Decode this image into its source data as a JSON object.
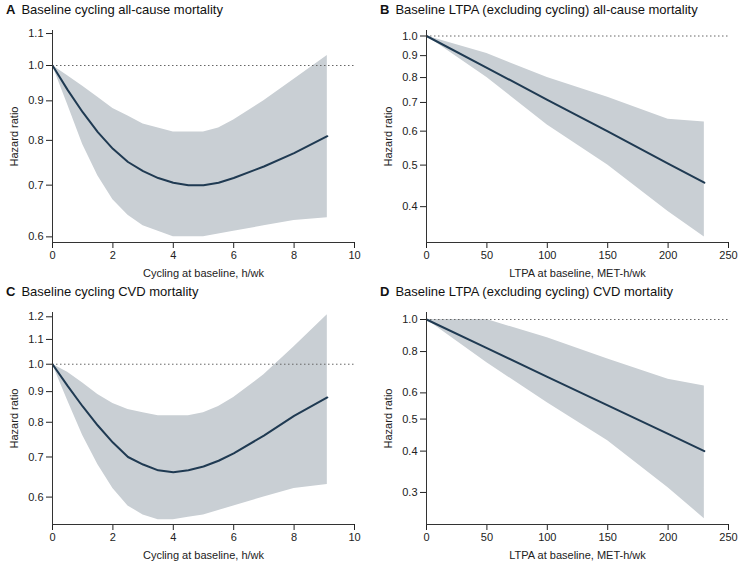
{
  "chart_data": [
    {
      "type": "line",
      "panel_label": "A",
      "title": "Baseline cycling all-cause mortality",
      "x_label": "Cycling at baseline, h/wk",
      "y_label": "Hazard ratio",
      "x": [
        0,
        0.5,
        1,
        1.5,
        2,
        2.5,
        3,
        3.5,
        4,
        4.5,
        5,
        5.5,
        6,
        7,
        8,
        9.1
      ],
      "values": [
        1.0,
        0.93,
        0.87,
        0.82,
        0.78,
        0.75,
        0.73,
        0.715,
        0.705,
        0.7,
        0.7,
        0.705,
        0.715,
        0.74,
        0.77,
        0.81
      ],
      "lower": [
        1.0,
        0.89,
        0.79,
        0.72,
        0.67,
        0.64,
        0.62,
        0.61,
        0.6,
        0.6,
        0.6,
        0.605,
        0.61,
        0.62,
        0.63,
        0.635
      ],
      "upper": [
        1.0,
        0.97,
        0.94,
        0.91,
        0.88,
        0.86,
        0.84,
        0.83,
        0.82,
        0.82,
        0.82,
        0.83,
        0.85,
        0.9,
        0.96,
        1.03
      ],
      "color": "#1f3a52",
      "log": "y",
      "reference_line": 1,
      "xlim": [
        0,
        10
      ],
      "xticks": [
        0,
        2,
        4,
        6,
        8,
        10
      ],
      "ylim": [
        0.59,
        1.11
      ],
      "yticks": [
        0.6,
        0.7,
        0.8,
        0.9,
        {
          "value": 1,
          "label": "1.0"
        },
        1.1
      ]
    },
    {
      "type": "line",
      "panel_label": "B",
      "title": "Baseline LTPA (excluding cycling) all-cause mortality",
      "x_label": "LTPA at baseline, MET-h/wk",
      "y_label": "Hazard ratio",
      "x": [
        0,
        50,
        100,
        150,
        200,
        230
      ],
      "values": [
        1.0,
        0.843,
        0.71,
        0.599,
        0.504,
        0.455
      ],
      "lower": [
        1.0,
        0.8,
        0.62,
        0.5,
        0.39,
        0.34
      ],
      "upper": [
        1.0,
        0.91,
        0.8,
        0.72,
        0.64,
        0.63
      ],
      "color": "#1f3a52",
      "log": "y",
      "reference_line": 1,
      "xlim": [
        0,
        250
      ],
      "xticks": [
        0,
        50,
        100,
        150,
        200,
        250
      ],
      "ylim": [
        0.33,
        1.03
      ],
      "yticks": [
        0.4,
        0.5,
        0.6,
        0.7,
        0.8,
        0.9,
        {
          "value": 1,
          "label": "1.0"
        }
      ]
    },
    {
      "type": "line",
      "panel_label": "C",
      "title": "Baseline cycling CVD mortality",
      "x_label": "Cycling at baseline, h/wk",
      "y_label": "Hazard ratio",
      "x": [
        0,
        0.5,
        1,
        1.5,
        2,
        2.5,
        3,
        3.5,
        4,
        4.5,
        5,
        5.5,
        6,
        7,
        8,
        9.1
      ],
      "values": [
        1.0,
        0.92,
        0.85,
        0.79,
        0.74,
        0.7,
        0.68,
        0.665,
        0.66,
        0.665,
        0.675,
        0.69,
        0.71,
        0.76,
        0.82,
        0.88
      ],
      "lower": [
        1.0,
        0.87,
        0.76,
        0.68,
        0.62,
        0.58,
        0.56,
        0.55,
        0.55,
        0.555,
        0.56,
        0.57,
        0.58,
        0.6,
        0.62,
        0.63
      ],
      "upper": [
        1.0,
        0.97,
        0.93,
        0.89,
        0.86,
        0.84,
        0.83,
        0.82,
        0.82,
        0.82,
        0.83,
        0.85,
        0.88,
        0.96,
        1.07,
        1.21
      ],
      "color": "#1f3a52",
      "log": "y",
      "reference_line": 1,
      "xlim": [
        0,
        10
      ],
      "xticks": [
        0,
        2,
        4,
        6,
        8,
        10
      ],
      "ylim": [
        0.54,
        1.22
      ],
      "yticks": [
        0.6,
        0.7,
        0.8,
        0.9,
        {
          "value": 1,
          "label": "1.0"
        },
        1.1,
        1.2
      ]
    },
    {
      "type": "line",
      "panel_label": "D",
      "title": "Baseline LTPA (excluding cycling) CVD mortality",
      "x_label": "LTPA at baseline, MET-h/wk",
      "y_label": "Hazard ratio",
      "x": [
        0,
        50,
        100,
        150,
        200,
        230
      ],
      "values": [
        1.0,
        0.819,
        0.671,
        0.55,
        0.451,
        0.4
      ],
      "lower": [
        1.0,
        0.74,
        0.56,
        0.43,
        0.31,
        0.25
      ],
      "upper": [
        1.0,
        1.0,
        0.88,
        0.76,
        0.66,
        0.63
      ],
      "color": "#1f3a52",
      "log": "y",
      "reference_line": 1,
      "xlim": [
        0,
        250
      ],
      "xticks": [
        0,
        50,
        100,
        150,
        200,
        250
      ],
      "ylim": [
        0.24,
        1.05
      ],
      "yticks": [
        0.3,
        0.4,
        0.5,
        0.6,
        0.8,
        {
          "value": 1,
          "label": "1.0"
        }
      ]
    }
  ]
}
